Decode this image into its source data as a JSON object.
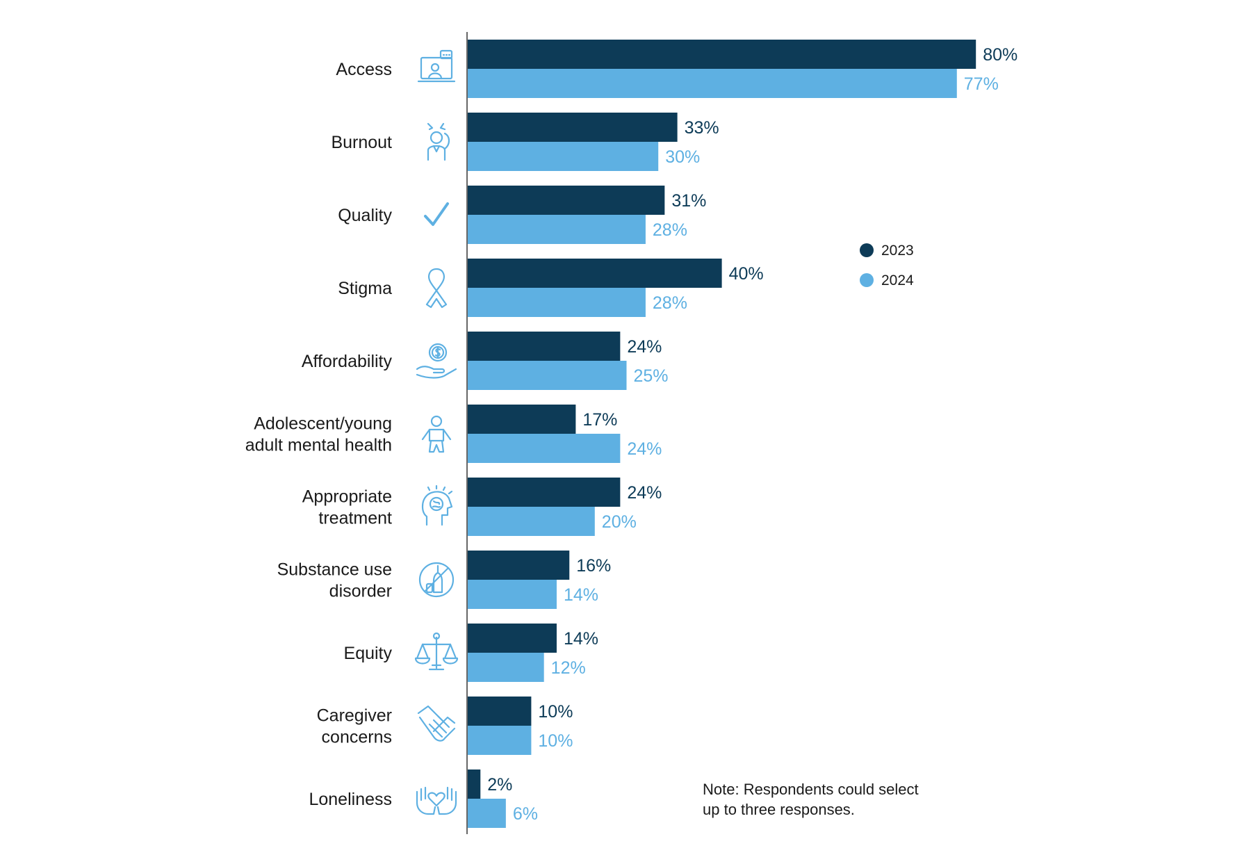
{
  "chart_data": {
    "type": "bar",
    "orientation": "horizontal",
    "categories": [
      "Access",
      "Burnout",
      "Quality",
      "Stigma",
      "Affordability",
      "Adolescent/young adult mental health",
      "Appropriate treatment",
      "Substance use disorder",
      "Equity",
      "Caregiver concerns",
      "Loneliness"
    ],
    "category_lines": [
      [
        "Access"
      ],
      [
        "Burnout"
      ],
      [
        "Quality"
      ],
      [
        "Stigma"
      ],
      [
        "Affordability"
      ],
      [
        "Adolescent/young",
        "adult mental health"
      ],
      [
        "Appropriate",
        "treatment"
      ],
      [
        "Substance use",
        "disorder"
      ],
      [
        "Equity"
      ],
      [
        "Caregiver",
        "concerns"
      ],
      [
        "Loneliness"
      ]
    ],
    "category_icons": [
      "telehealth-icon",
      "stressed-person-icon",
      "checkmark-icon",
      "awareness-ribbon-icon",
      "hand-coin-icon",
      "child-icon",
      "brain-head-icon",
      "no-alcohol-icon",
      "scales-icon",
      "handshake-icon",
      "hands-heart-icon"
    ],
    "series": [
      {
        "name": "2023",
        "color": "#0d3b57",
        "values": [
          80,
          33,
          31,
          40,
          24,
          17,
          24,
          16,
          14,
          10,
          2
        ]
      },
      {
        "name": "2024",
        "color": "#5eb0e2",
        "values": [
          77,
          30,
          28,
          28,
          25,
          24,
          20,
          14,
          12,
          10,
          6
        ]
      }
    ],
    "value_suffix": "%",
    "xlim": [
      0,
      100
    ],
    "legend_position": "right",
    "title": "",
    "xlabel": "",
    "ylabel": ""
  },
  "note": {
    "lines": [
      "Note: Respondents could select",
      "up to three responses."
    ]
  }
}
